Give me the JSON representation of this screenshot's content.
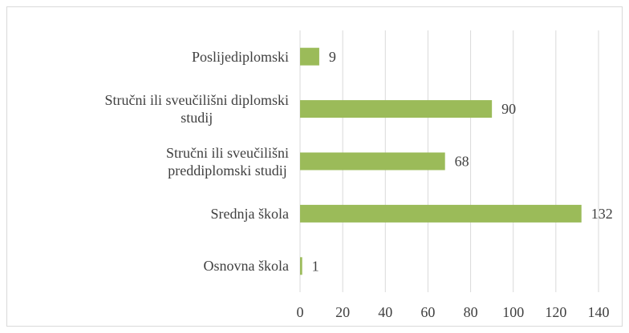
{
  "chart_data": {
    "type": "bar",
    "orientation": "horizontal",
    "categories": [
      "Poslijediplomski",
      "Stručni ili sveučilišni diplomski\nstudij",
      "Stručni ili sveučilišni\npreddiplomski studij",
      "Srednja škola",
      "Osnovna škola"
    ],
    "values": [
      9,
      90,
      68,
      132,
      1
    ],
    "color": "#9bbb59",
    "xlim": [
      0,
      140
    ],
    "xticks": [
      0,
      20,
      40,
      60,
      80,
      100,
      120,
      140
    ],
    "grid": true
  }
}
